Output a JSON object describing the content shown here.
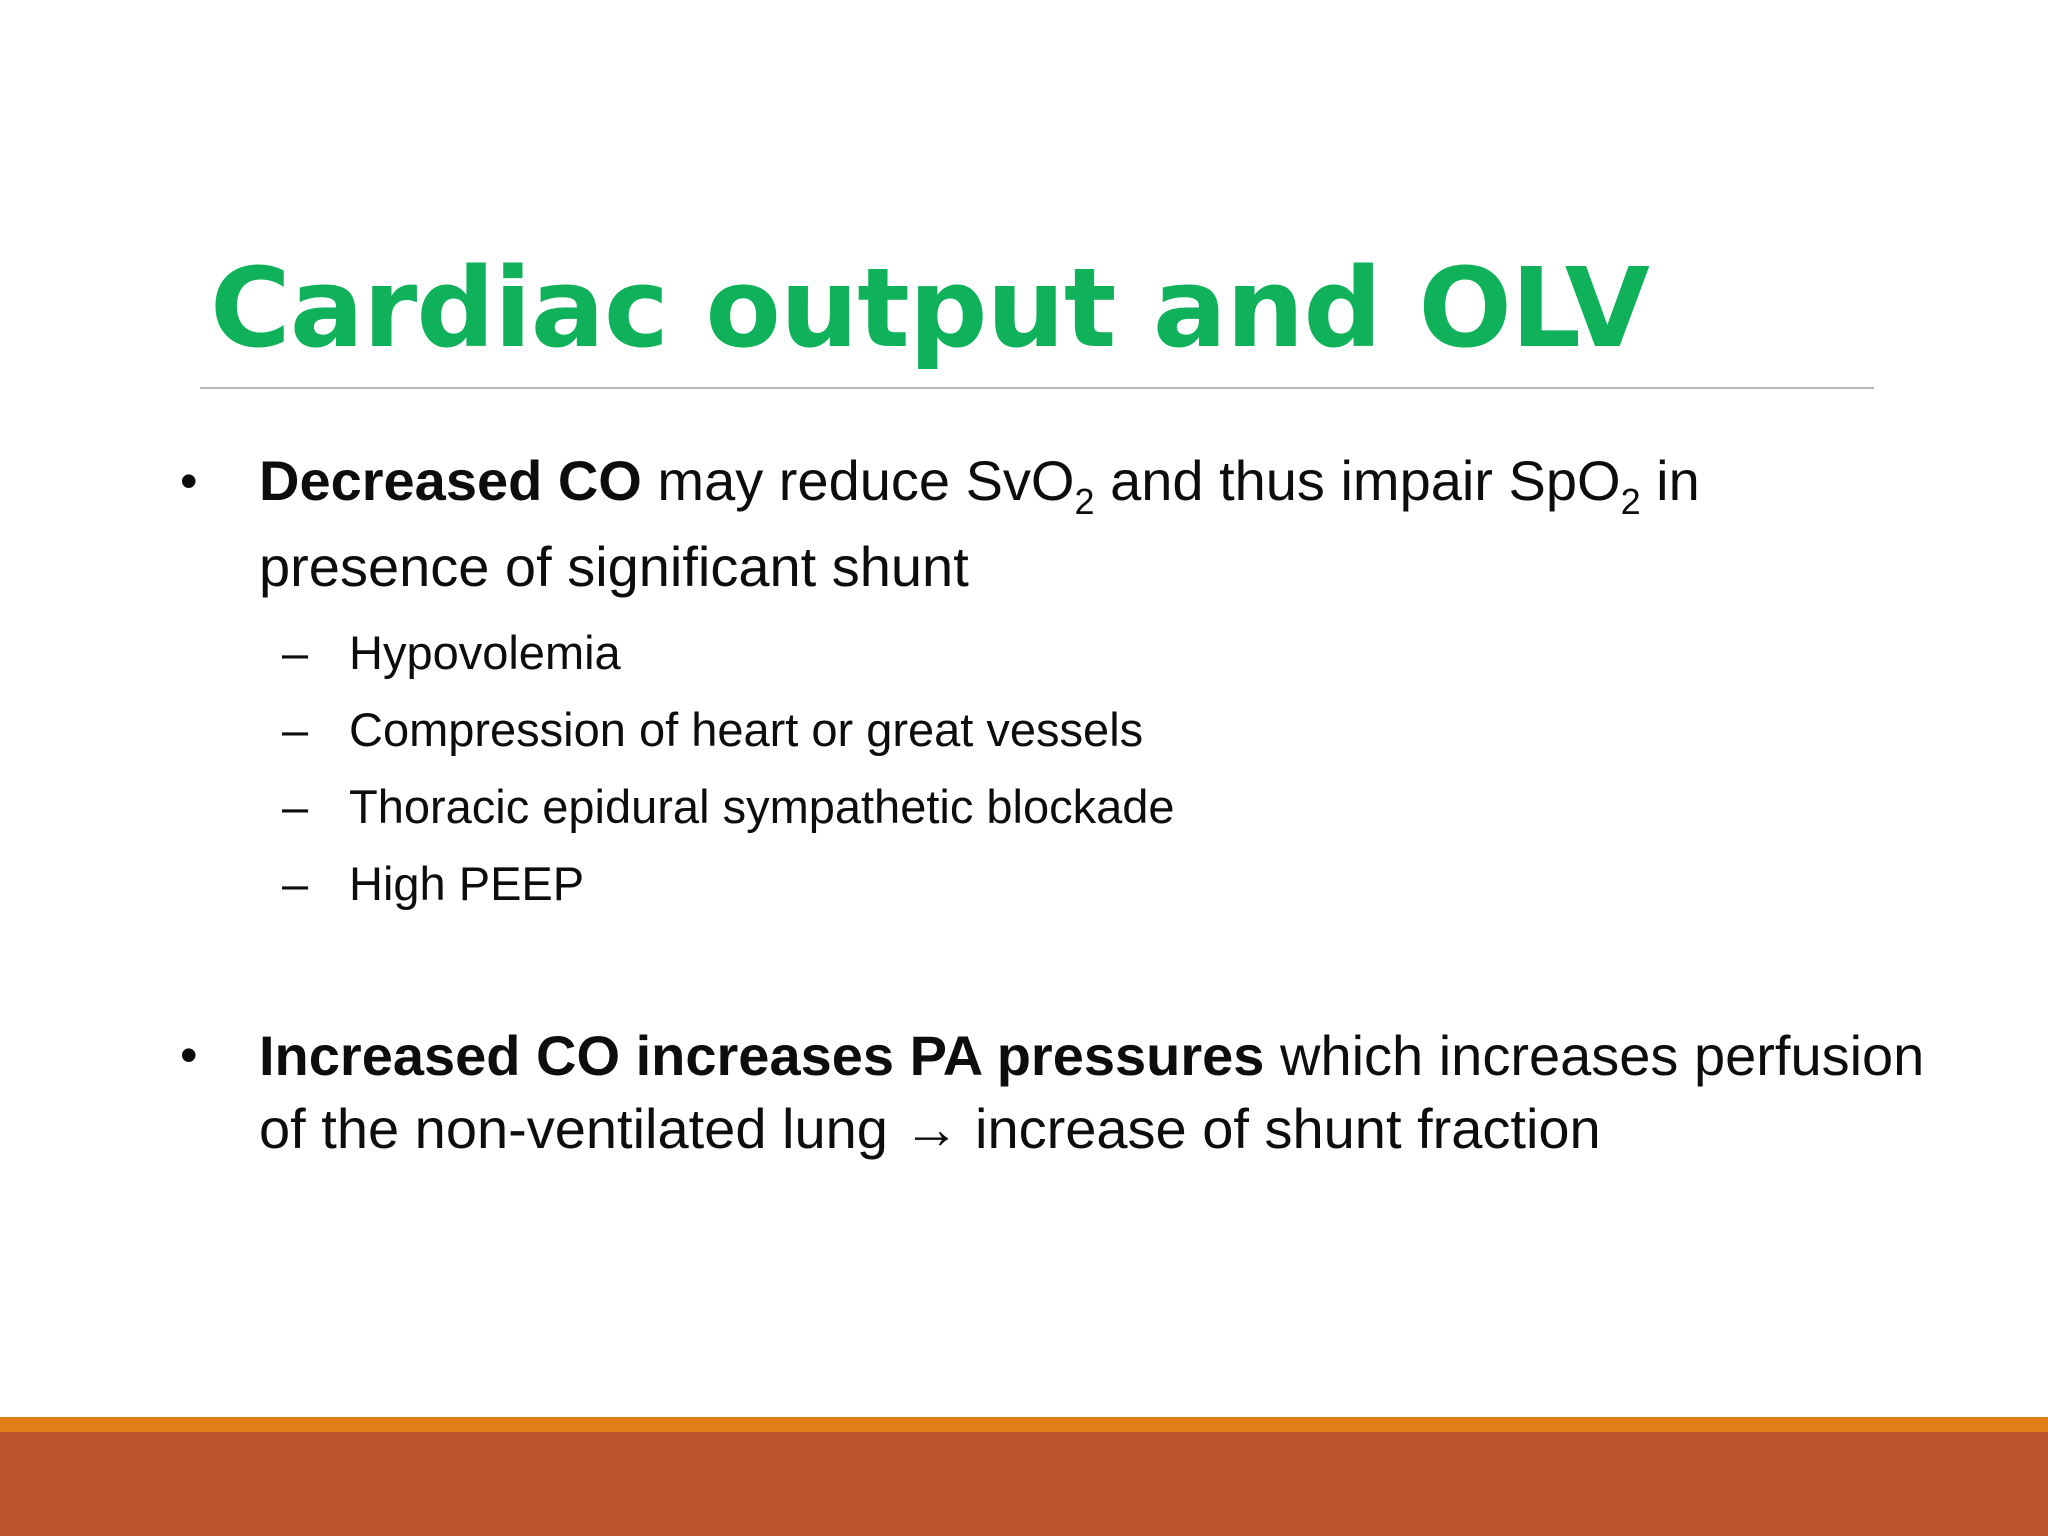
{
  "slide": {
    "title": "Cardiac output and OLV",
    "bullets": [
      {
        "bold": "Decreased CO",
        "text_a": " may reduce SvO",
        "sub_a": "2",
        "text_b": " and thus impair  SpO",
        "sub_b": "2",
        "text_c": " in presence of significant shunt",
        "subitems": [
          {
            "dash": "–",
            "text": "Hypovolemia"
          },
          {
            "dash": "–",
            "text": "Compression of heart or great vessels"
          },
          {
            "dash": "–",
            "text": "Thoracic epidural sympathetic blockade"
          },
          {
            "dash": "–",
            "text": "High PEEP"
          }
        ]
      },
      {
        "bold": "Increased CO increases PA pressures",
        "text": " which  increases perfusion of the non-ventilated lung → increase of shunt fraction"
      }
    ]
  },
  "colors": {
    "title": "#0fb25a",
    "footer_orange": "#e17f16",
    "footer_rust": "#bc552c",
    "title_rule": "#b9b9b9"
  }
}
